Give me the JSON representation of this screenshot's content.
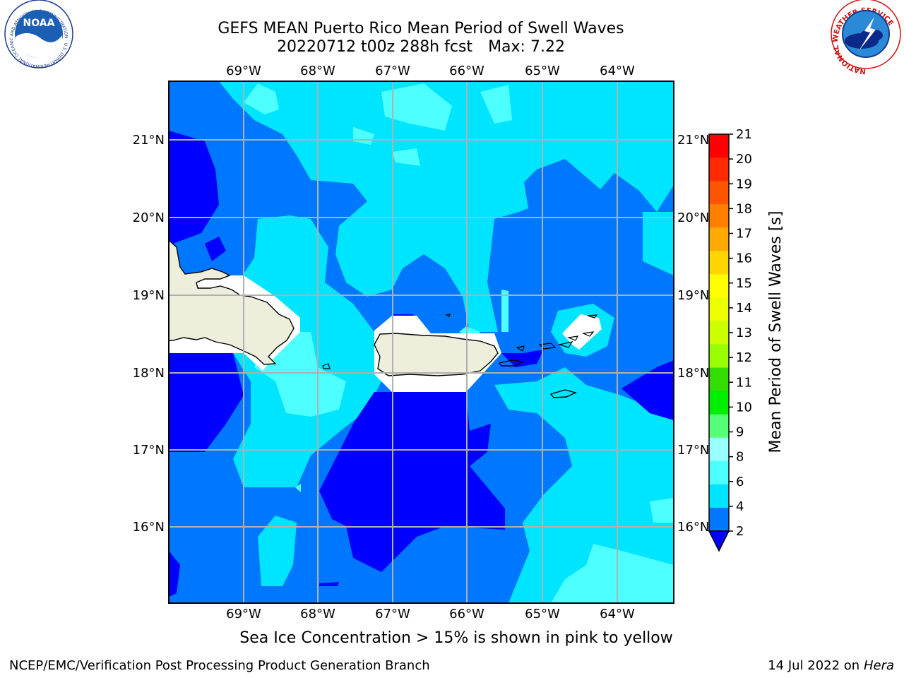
{
  "title": {
    "line1": "GEFS MEAN Puerto Rico Mean Period of Swell Waves",
    "run": "20220712 t00z 288h fcst",
    "max": "Max: 7.22"
  },
  "map": {
    "lon_labels": [
      "69°W",
      "68°W",
      "67°W",
      "66°W",
      "65°W",
      "64°W"
    ],
    "lat_labels": [
      "21°N",
      "20°N",
      "19°N",
      "18°N",
      "17°N",
      "16°N"
    ],
    "colors": {
      "band_2_4": "#0000ff",
      "band_4_6": "#0077ff",
      "band_6_8": "#00e5ff",
      "band_8_10": "#4dffff",
      "band_10_12": "#99ffff",
      "land": "#eeeedd",
      "grid": "#b0b0b0"
    }
  },
  "colorbar": {
    "title": "Mean Period of Swell Waves [s]",
    "ticks": [
      "21",
      "20",
      "19",
      "18",
      "17",
      "16",
      "15",
      "14",
      "13",
      "12",
      "11",
      "10",
      "9",
      "8",
      "6",
      "4",
      "2"
    ],
    "segments": [
      "#ff0000",
      "#ff2a00",
      "#ff5500",
      "#ff8000",
      "#ffaa00",
      "#ffd500",
      "#ffff00",
      "#eeff00",
      "#ccff00",
      "#99ff00",
      "#33dd00",
      "#00ee00",
      "#55ff77",
      "#99ffff",
      "#4dffff",
      "#00e5ff",
      "#0077ff"
    ],
    "extend_color": "#0000ff"
  },
  "caption": "Sea Ice Concentration > 15% is shown in pink to yellow",
  "footer": {
    "left": "NCEP/EMC/Verification Post Processing Product Generation Branch",
    "date": "14 Jul 2022 on ",
    "machine": "Hera"
  },
  "logos": {
    "noaa_text": "NOAA",
    "noaa_ring": "NATIONAL OCEANIC AND ATMOSPHERIC ADMINISTRATION · U.S. DEPARTMENT OF COMMERCE",
    "nws_ring": "NATIONAL WEATHER SERVICE"
  }
}
